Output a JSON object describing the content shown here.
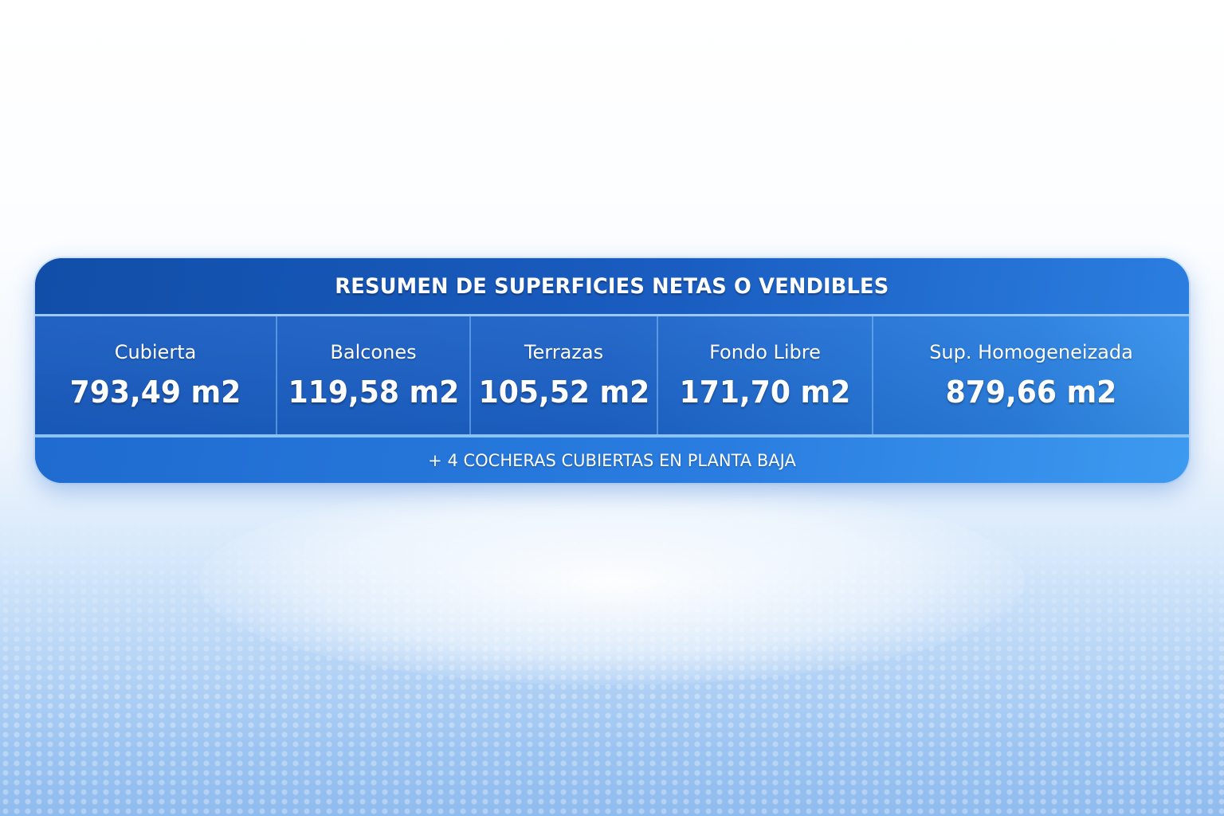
{
  "panel": {
    "title": "RESUMEN DE SUPERFICIES NETAS O VENDIBLES",
    "items": [
      {
        "label": "Cubierta",
        "value": "793,49 m2"
      },
      {
        "label": "Balcones",
        "value": "119,58 m2"
      },
      {
        "label": "Terrazas",
        "value": "105,52 m2"
      },
      {
        "label": "Fondo Libre",
        "value": "171,70 m2"
      },
      {
        "label": "Sup. Homogeneizada",
        "value": "879,66 m2"
      }
    ],
    "footer": "+ 4 COCHERAS CUBIERTAS EN PLANTA BAJA"
  },
  "colors": {
    "panel_blue": "#1d63c8",
    "accent_light_blue": "#9ccaf5",
    "text": "#ffffff"
  }
}
